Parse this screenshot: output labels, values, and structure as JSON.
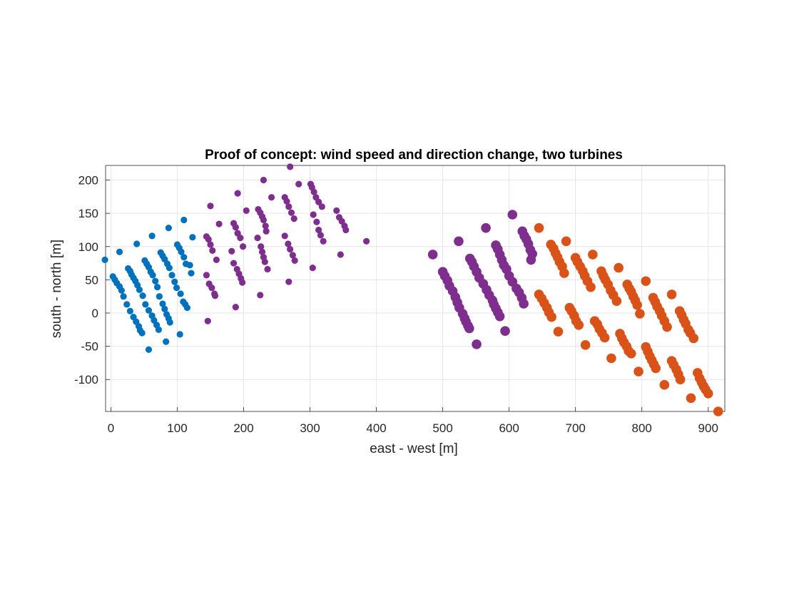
{
  "chart_data": {
    "type": "scatter",
    "title": "Proof of concept: wind speed and direction change, two turbines",
    "xlabel": "east - west [m]",
    "ylabel": "south - north [m]",
    "xlim": [
      -8,
      925
    ],
    "ylim": [
      -148,
      222
    ],
    "xticks": [
      0,
      100,
      200,
      300,
      400,
      500,
      600,
      700,
      800,
      900
    ],
    "yticks": [
      -100,
      -50,
      0,
      50,
      100,
      150,
      200
    ],
    "grid": true,
    "series": [
      {
        "color": "#0072BD",
        "size": "small",
        "points": [
          [
            -9,
            80
          ],
          [
            13,
            92
          ],
          [
            39,
            104
          ],
          [
            62,
            116
          ],
          [
            87,
            128
          ],
          [
            110,
            140
          ],
          [
            123,
            114
          ],
          [
            121,
            60
          ],
          [
            104,
            -32
          ],
          [
            83,
            -43
          ],
          [
            57,
            -55
          ],
          [
            3,
            55
          ],
          [
            6,
            50
          ],
          [
            9,
            45
          ],
          [
            13,
            40
          ],
          [
            16,
            34
          ],
          [
            19,
            25
          ],
          [
            24,
            13
          ],
          [
            29,
            3
          ],
          [
            34,
            -6
          ],
          [
            38,
            -13
          ],
          [
            42,
            -20
          ],
          [
            44,
            -26
          ],
          [
            47,
            -30
          ],
          [
            26,
            67
          ],
          [
            29,
            63
          ],
          [
            31,
            58
          ],
          [
            34,
            53
          ],
          [
            37,
            48
          ],
          [
            40,
            42
          ],
          [
            43,
            35
          ],
          [
            48,
            26
          ],
          [
            52,
            13
          ],
          [
            57,
            4
          ],
          [
            62,
            -4
          ],
          [
            65,
            -11
          ],
          [
            69,
            -18
          ],
          [
            72,
            -25
          ],
          [
            51,
            79
          ],
          [
            54,
            74
          ],
          [
            57,
            69
          ],
          [
            60,
            62
          ],
          [
            63,
            57
          ],
          [
            67,
            48
          ],
          [
            70,
            39
          ],
          [
            73,
            25
          ],
          [
            78,
            14
          ],
          [
            81,
            6
          ],
          [
            84,
            -2
          ],
          [
            87,
            -8
          ],
          [
            89,
            -14
          ],
          [
            75,
            91
          ],
          [
            78,
            86
          ],
          [
            81,
            81
          ],
          [
            85,
            74
          ],
          [
            88,
            68
          ],
          [
            92,
            57
          ],
          [
            96,
            47
          ],
          [
            99,
            38
          ],
          [
            105,
            29
          ],
          [
            109,
            17
          ],
          [
            112,
            13
          ],
          [
            115,
            8
          ],
          [
            100,
            103
          ],
          [
            103,
            98
          ],
          [
            106,
            92
          ],
          [
            110,
            84
          ],
          [
            113,
            74
          ],
          [
            119,
            72
          ]
        ]
      },
      {
        "color": "#7E2F8E",
        "size": "small",
        "points": [
          [
            144,
            115
          ],
          [
            147,
            111
          ],
          [
            150,
            103
          ],
          [
            153,
            94
          ],
          [
            159,
            80
          ],
          [
            144,
            57
          ],
          [
            148,
            44
          ],
          [
            152,
            38
          ],
          [
            156,
            29
          ],
          [
            157,
            26
          ],
          [
            146,
            -12
          ],
          [
            150,
            161
          ],
          [
            163,
            134
          ],
          [
            185,
            135
          ],
          [
            188,
            129
          ],
          [
            191,
            120
          ],
          [
            195,
            113
          ],
          [
            199,
            100
          ],
          [
            182,
            93
          ],
          [
            185,
            75
          ],
          [
            190,
            66
          ],
          [
            193,
            59
          ],
          [
            196,
            52
          ],
          [
            198,
            46
          ],
          [
            188,
            9
          ],
          [
            191,
            180
          ],
          [
            204,
            154
          ],
          [
            222,
            156
          ],
          [
            225,
            151
          ],
          [
            228,
            145
          ],
          [
            230,
            140
          ],
          [
            233,
            131
          ],
          [
            234,
            123
          ],
          [
            221,
            113
          ],
          [
            226,
            100
          ],
          [
            228,
            92
          ],
          [
            230,
            84
          ],
          [
            232,
            77
          ],
          [
            236,
            66
          ],
          [
            225,
            27
          ],
          [
            230,
            200
          ],
          [
            242,
            174
          ],
          [
            262,
            174
          ],
          [
            265,
            168
          ],
          [
            268,
            160
          ],
          [
            272,
            151
          ],
          [
            276,
            142
          ],
          [
            262,
            116
          ],
          [
            267,
            104
          ],
          [
            270,
            96
          ],
          [
            274,
            87
          ],
          [
            277,
            79
          ],
          [
            268,
            47
          ],
          [
            270,
            220
          ],
          [
            283,
            194
          ],
          [
            301,
            194
          ],
          [
            303,
            189
          ],
          [
            306,
            182
          ],
          [
            309,
            174
          ],
          [
            313,
            167
          ],
          [
            318,
            160
          ],
          [
            305,
            148
          ],
          [
            310,
            137
          ],
          [
            313,
            125
          ],
          [
            316,
            117
          ],
          [
            320,
            108
          ],
          [
            304,
            68
          ],
          [
            340,
            154
          ],
          [
            344,
            144
          ],
          [
            348,
            138
          ],
          [
            352,
            131
          ],
          [
            354,
            125
          ],
          [
            346,
            88
          ],
          [
            385,
            108
          ]
        ]
      },
      {
        "color": "#7E2F8E",
        "size": "large",
        "points": [
          [
            485,
            88
          ],
          [
            524,
            108
          ],
          [
            565,
            128
          ],
          [
            605,
            148
          ],
          [
            551,
            -47
          ],
          [
            594,
            -27
          ],
          [
            500,
            62
          ],
          [
            503,
            56
          ],
          [
            507,
            49
          ],
          [
            510,
            41
          ],
          [
            515,
            33
          ],
          [
            519,
            24
          ],
          [
            522,
            16
          ],
          [
            525,
            8
          ],
          [
            530,
            -1
          ],
          [
            533,
            -8
          ],
          [
            535,
            -13
          ],
          [
            538,
            -19
          ],
          [
            540,
            -23
          ],
          [
            541,
            82
          ],
          [
            544,
            77
          ],
          [
            547,
            70
          ],
          [
            551,
            62
          ],
          [
            555,
            53
          ],
          [
            561,
            44
          ],
          [
            566,
            35
          ],
          [
            570,
            27
          ],
          [
            575,
            19
          ],
          [
            577,
            13
          ],
          [
            580,
            7
          ],
          [
            583,
            1
          ],
          [
            586,
            -5
          ],
          [
            580,
            102
          ],
          [
            583,
            96
          ],
          [
            586,
            88
          ],
          [
            589,
            80
          ],
          [
            592,
            72
          ],
          [
            596,
            66
          ],
          [
            600,
            56
          ],
          [
            605,
            47
          ],
          [
            611,
            37
          ],
          [
            615,
            31
          ],
          [
            619,
            23
          ],
          [
            622,
            14
          ],
          [
            620,
            123
          ],
          [
            623,
            116
          ],
          [
            626,
            111
          ],
          [
            629,
            104
          ],
          [
            632,
            95
          ],
          [
            635,
            89
          ],
          [
            633,
            80
          ]
        ]
      },
      {
        "color": "#D95319",
        "size": "large",
        "points": [
          [
            645,
            128
          ],
          [
            686,
            108
          ],
          [
            726,
            88
          ],
          [
            765,
            68
          ],
          [
            806,
            48
          ],
          [
            845,
            28
          ],
          [
            915,
            -148
          ],
          [
            874,
            -128
          ],
          [
            834,
            -108
          ],
          [
            795,
            -88
          ],
          [
            754,
            -68
          ],
          [
            715,
            -48
          ],
          [
            674,
            -28
          ],
          [
            663,
            103
          ],
          [
            667,
            97
          ],
          [
            670,
            90
          ],
          [
            673,
            84
          ],
          [
            676,
            77
          ],
          [
            680,
            70
          ],
          [
            683,
            60
          ],
          [
            700,
            83
          ],
          [
            703,
            77
          ],
          [
            707,
            70
          ],
          [
            711,
            63
          ],
          [
            714,
            56
          ],
          [
            718,
            48
          ],
          [
            723,
            39
          ],
          [
            739,
            63
          ],
          [
            742,
            56
          ],
          [
            745,
            50
          ],
          [
            749,
            43
          ],
          [
            753,
            34
          ],
          [
            757,
            27
          ],
          [
            762,
            18
          ],
          [
            778,
            43
          ],
          [
            781,
            37
          ],
          [
            784,
            32
          ],
          [
            787,
            25
          ],
          [
            790,
            19
          ],
          [
            793,
            12
          ],
          [
            797,
            -1
          ],
          [
            817,
            23
          ],
          [
            820,
            17
          ],
          [
            823,
            10
          ],
          [
            827,
            3
          ],
          [
            830,
            -4
          ],
          [
            834,
            -12
          ],
          [
            838,
            -21
          ],
          [
            857,
            3
          ],
          [
            860,
            -3
          ],
          [
            863,
            -10
          ],
          [
            866,
            -16
          ],
          [
            870,
            -25
          ],
          [
            873,
            -30
          ],
          [
            878,
            -38
          ],
          [
            645,
            28
          ],
          [
            649,
            22
          ],
          [
            653,
            15
          ],
          [
            657,
            8
          ],
          [
            660,
            1
          ],
          [
            664,
            -6
          ],
          [
            691,
            8
          ],
          [
            694,
            3
          ],
          [
            698,
            -4
          ],
          [
            701,
            -12
          ],
          [
            705,
            -18
          ],
          [
            729,
            -12
          ],
          [
            733,
            -17
          ],
          [
            736,
            -24
          ],
          [
            740,
            -30
          ],
          [
            744,
            -37
          ],
          [
            767,
            -31
          ],
          [
            770,
            -38
          ],
          [
            773,
            -44
          ],
          [
            777,
            -50
          ],
          [
            780,
            -57
          ],
          [
            784,
            -61
          ],
          [
            806,
            -51
          ],
          [
            809,
            -58
          ],
          [
            812,
            -65
          ],
          [
            815,
            -71
          ],
          [
            818,
            -77
          ],
          [
            821,
            -83
          ],
          [
            845,
            -72
          ],
          [
            848,
            -78
          ],
          [
            852,
            -85
          ],
          [
            855,
            -92
          ],
          [
            858,
            -100
          ],
          [
            884,
            -90
          ],
          [
            887,
            -98
          ],
          [
            890,
            -104
          ],
          [
            893,
            -110
          ],
          [
            896,
            -115
          ],
          [
            900,
            -121
          ]
        ]
      }
    ]
  },
  "colors": {
    "grid": "#e6e6e6",
    "axis": "#262626"
  }
}
